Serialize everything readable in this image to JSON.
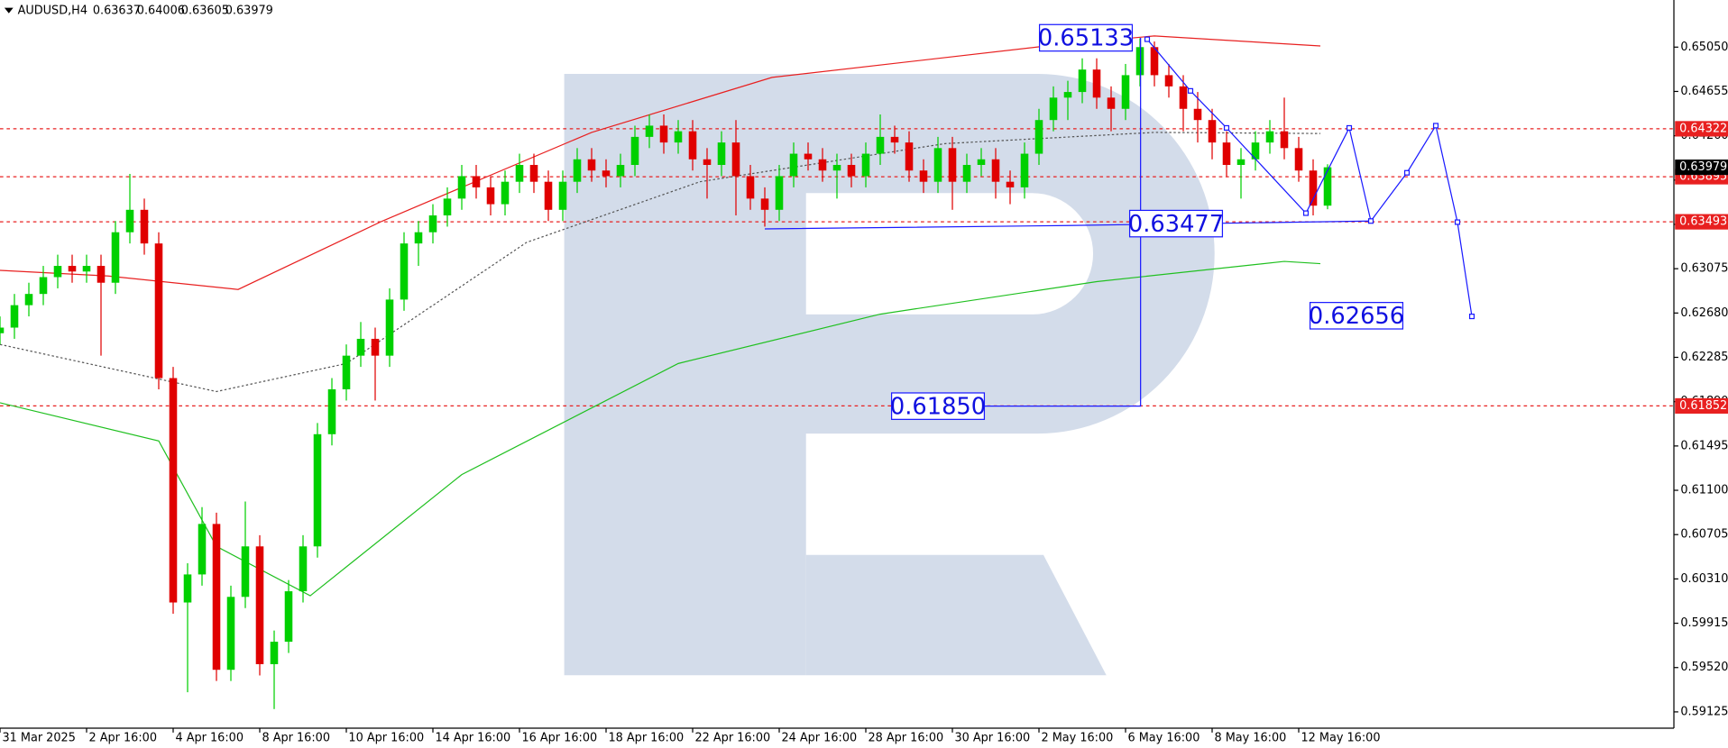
{
  "chart_data": {
    "type": "candlestick",
    "symbol": "AUDUSD,H4",
    "xlim": [
      0,
      232
    ],
    "ylim": [
      0.5898,
      0.6547
    ],
    "xticks": [
      {
        "value": 0,
        "label": "31 Mar 2025"
      },
      {
        "value": 12,
        "label": "2 Apr 16:00"
      },
      {
        "value": 24,
        "label": "4 Apr 16:00"
      },
      {
        "value": 36,
        "label": "8 Apr 16:00"
      },
      {
        "value": 48,
        "label": "10 Apr 16:00"
      },
      {
        "value": 60,
        "label": "14 Apr 16:00"
      },
      {
        "value": 72,
        "label": "16 Apr 16:00"
      },
      {
        "value": 84,
        "label": "18 Apr 16:00"
      },
      {
        "value": 96,
        "label": "22 Apr 16:00"
      },
      {
        "value": 108,
        "label": "24 Apr 16:00"
      },
      {
        "value": 120,
        "label": "28 Apr 16:00"
      },
      {
        "value": 132,
        "label": "30 Apr 16:00"
      },
      {
        "value": 144,
        "label": "2 May 16:00"
      },
      {
        "value": 156,
        "label": "6 May 16:00"
      },
      {
        "value": 168,
        "label": "8 May 16:00"
      },
      {
        "value": 180,
        "label": "12 May 16:00"
      }
    ],
    "yticks": [
      {
        "value": 0.6505,
        "label": "0.65050"
      },
      {
        "value": 0.64655,
        "label": "0.64655"
      },
      {
        "value": 0.6426,
        "label": "0.64260"
      },
      {
        "value": 0.63865,
        "label": "0.63865"
      },
      {
        "value": 0.6347,
        "label": "0.63470"
      },
      {
        "value": 0.63075,
        "label": "0.63075"
      },
      {
        "value": 0.6268,
        "label": "0.62680"
      },
      {
        "value": 0.62285,
        "label": "0.62285"
      },
      {
        "value": 0.6189,
        "label": "0.61890"
      },
      {
        "value": 0.61495,
        "label": "0.61495"
      },
      {
        "value": 0.611,
        "label": "0.61100"
      },
      {
        "value": 0.60705,
        "label": "0.60705"
      },
      {
        "value": 0.6031,
        "label": "0.60310"
      },
      {
        "value": 0.59915,
        "label": "0.59915"
      },
      {
        "value": 0.5952,
        "label": "0.59520"
      },
      {
        "value": 0.59125,
        "label": "0.59125"
      }
    ],
    "up_color": "#00d000",
    "down_color": "#e00000",
    "x": [
      0,
      2,
      4,
      6,
      8,
      10,
      12,
      14,
      16,
      18,
      20,
      22,
      24,
      26,
      28,
      30,
      32,
      34,
      36,
      38,
      40,
      42,
      44,
      46,
      48,
      50,
      52,
      54,
      56,
      58,
      60,
      62,
      64,
      66,
      68,
      70,
      72,
      74,
      76,
      78,
      80,
      82,
      84,
      86,
      88,
      90,
      92,
      94,
      96,
      98,
      100,
      102,
      104,
      106,
      108,
      110,
      112,
      114,
      116,
      118,
      120,
      122,
      124,
      126,
      128,
      130,
      132,
      134,
      136,
      138,
      140,
      142,
      144,
      146,
      148,
      150,
      152,
      154,
      156,
      158,
      160,
      162,
      164,
      166,
      168,
      170,
      172,
      174,
      176,
      178,
      180,
      182,
      184
    ],
    "open": [
      0.625,
      0.6255,
      0.6275,
      0.6285,
      0.63,
      0.631,
      0.6305,
      0.631,
      0.6295,
      0.634,
      0.636,
      0.633,
      0.621,
      0.601,
      0.6035,
      0.608,
      0.595,
      0.6015,
      0.606,
      0.5955,
      0.5975,
      0.602,
      0.606,
      0.616,
      0.62,
      0.623,
      0.6245,
      0.623,
      0.628,
      0.633,
      0.634,
      0.6355,
      0.637,
      0.639,
      0.638,
      0.6365,
      0.6385,
      0.64,
      0.6385,
      0.636,
      0.6385,
      0.6405,
      0.6395,
      0.639,
      0.64,
      0.6425,
      0.6435,
      0.642,
      0.643,
      0.6405,
      0.64,
      0.642,
      0.639,
      0.637,
      0.636,
      0.639,
      0.641,
      0.6405,
      0.6395,
      0.64,
      0.639,
      0.641,
      0.6425,
      0.642,
      0.6395,
      0.6385,
      0.6415,
      0.6385,
      0.64,
      0.6405,
      0.6385,
      0.638,
      0.641,
      0.644,
      0.646,
      0.6465,
      0.6485,
      0.646,
      0.645,
      0.648,
      0.6505,
      0.648,
      0.647,
      0.645,
      0.644,
      0.642,
      0.64,
      0.6405,
      0.642,
      0.643,
      0.6415,
      0.6395,
      0.63637
    ],
    "high": [
      0.6265,
      0.6285,
      0.6295,
      0.631,
      0.632,
      0.632,
      0.632,
      0.632,
      0.635,
      0.6392,
      0.637,
      0.634,
      0.622,
      0.6045,
      0.6095,
      0.609,
      0.6025,
      0.61,
      0.607,
      0.5985,
      0.603,
      0.607,
      0.617,
      0.621,
      0.624,
      0.626,
      0.6255,
      0.629,
      0.634,
      0.635,
      0.6365,
      0.638,
      0.64,
      0.64,
      0.639,
      0.6395,
      0.641,
      0.641,
      0.6395,
      0.6395,
      0.6415,
      0.6415,
      0.6405,
      0.641,
      0.6435,
      0.6445,
      0.6445,
      0.644,
      0.644,
      0.6415,
      0.643,
      0.644,
      0.64,
      0.638,
      0.64,
      0.642,
      0.642,
      0.6415,
      0.641,
      0.641,
      0.642,
      0.6445,
      0.6435,
      0.643,
      0.6405,
      0.6425,
      0.6425,
      0.641,
      0.6415,
      0.6415,
      0.6395,
      0.642,
      0.645,
      0.647,
      0.6475,
      0.6495,
      0.6495,
      0.647,
      0.649,
      0.6513,
      0.651,
      0.649,
      0.648,
      0.6465,
      0.645,
      0.643,
      0.6415,
      0.643,
      0.644,
      0.646,
      0.6425,
      0.6405,
      0.64006
    ],
    "low": [
      0.624,
      0.6245,
      0.6265,
      0.6275,
      0.629,
      0.6295,
      0.6295,
      0.623,
      0.6285,
      0.633,
      0.632,
      0.62,
      0.6,
      0.593,
      0.6025,
      0.594,
      0.594,
      0.6005,
      0.5945,
      0.5915,
      0.5965,
      0.601,
      0.605,
      0.615,
      0.619,
      0.622,
      0.619,
      0.622,
      0.627,
      0.631,
      0.633,
      0.6345,
      0.636,
      0.637,
      0.6355,
      0.6355,
      0.6375,
      0.6375,
      0.635,
      0.635,
      0.6375,
      0.6385,
      0.638,
      0.638,
      0.639,
      0.6415,
      0.641,
      0.641,
      0.6395,
      0.637,
      0.639,
      0.6355,
      0.636,
      0.6345,
      0.635,
      0.638,
      0.6395,
      0.6385,
      0.637,
      0.638,
      0.638,
      0.64,
      0.641,
      0.6385,
      0.6375,
      0.6375,
      0.636,
      0.6375,
      0.639,
      0.637,
      0.6365,
      0.637,
      0.64,
      0.643,
      0.644,
      0.6455,
      0.645,
      0.643,
      0.644,
      0.647,
      0.647,
      0.646,
      0.643,
      0.642,
      0.6405,
      0.639,
      0.637,
      0.6395,
      0.641,
      0.6405,
      0.6385,
      0.6355,
      0.63605
    ],
    "close": [
      0.6255,
      0.6275,
      0.6285,
      0.63,
      0.631,
      0.6305,
      0.631,
      0.6295,
      0.634,
      0.636,
      0.633,
      0.621,
      0.601,
      0.6035,
      0.608,
      0.595,
      0.6015,
      0.606,
      0.5955,
      0.5975,
      0.602,
      0.606,
      0.616,
      0.62,
      0.623,
      0.6245,
      0.623,
      0.628,
      0.633,
      0.634,
      0.6355,
      0.637,
      0.639,
      0.638,
      0.6365,
      0.6385,
      0.64,
      0.6385,
      0.636,
      0.6385,
      0.6405,
      0.6395,
      0.639,
      0.64,
      0.6425,
      0.6435,
      0.642,
      0.643,
      0.6405,
      0.64,
      0.642,
      0.639,
      0.637,
      0.636,
      0.639,
      0.641,
      0.6405,
      0.6395,
      0.64,
      0.639,
      0.641,
      0.6425,
      0.642,
      0.6395,
      0.6385,
      0.6415,
      0.6385,
      0.64,
      0.6405,
      0.6385,
      0.638,
      0.641,
      0.644,
      0.646,
      0.6465,
      0.6485,
      0.646,
      0.645,
      0.648,
      0.6505,
      0.648,
      0.647,
      0.645,
      0.644,
      0.642,
      0.64,
      0.6405,
      0.642,
      0.643,
      0.6415,
      0.6395,
      0.63637,
      0.63979
    ],
    "indicators": [
      {
        "color": "#e82020",
        "dash": false,
        "x": [
          0,
          15,
          33,
          53,
          82,
          107,
          145,
          160,
          183
        ],
        "values": [
          0.6306,
          0.6301,
          0.6289,
          0.635,
          0.6429,
          0.6478,
          0.6506,
          0.6515,
          0.6506
        ]
      },
      {
        "color": "#20c020",
        "dash": false,
        "x": [
          0,
          22,
          30,
          43,
          64,
          94,
          122,
          152,
          178,
          183
        ],
        "values": [
          0.6188,
          0.6154,
          0.606,
          0.6016,
          0.6124,
          0.6223,
          0.6267,
          0.6296,
          0.6314,
          0.6312
        ]
      },
      {
        "color": "#555555",
        "dash": true,
        "x": [
          0,
          30,
          48,
          73,
          97,
          131,
          160,
          183
        ],
        "values": [
          0.624,
          0.6198,
          0.6223,
          0.6331,
          0.6385,
          0.6419,
          0.6429,
          0.6428
        ]
      }
    ],
    "levels": [
      0.64322,
      0.63895,
      0.63493,
      0.61852
    ],
    "level_color": "#e82020",
    "forecast": {
      "color": "#1a1aff",
      "x": [
        159,
        165,
        170,
        181,
        187,
        190,
        195,
        199,
        202,
        204
      ],
      "values": [
        0.6512,
        0.6466,
        0.6433,
        0.6357,
        0.6433,
        0.635,
        0.6393,
        0.6435,
        0.6349,
        0.6265
      ]
    },
    "support_line": {
      "x": [
        106,
        148,
        190
      ],
      "values": [
        0.6343,
        0.6346,
        0.635
      ]
    },
    "annotations": [
      {
        "label": "0.65133",
        "value": 0.65133,
        "x": 150.5
      },
      {
        "label": "0.63477",
        "value": 0.63477,
        "x": 163
      },
      {
        "label": "0.62656",
        "value": 0.62656,
        "x": 188
      },
      {
        "label": "0.61850",
        "value": 0.6185,
        "x": 130
      }
    ]
  }
}
